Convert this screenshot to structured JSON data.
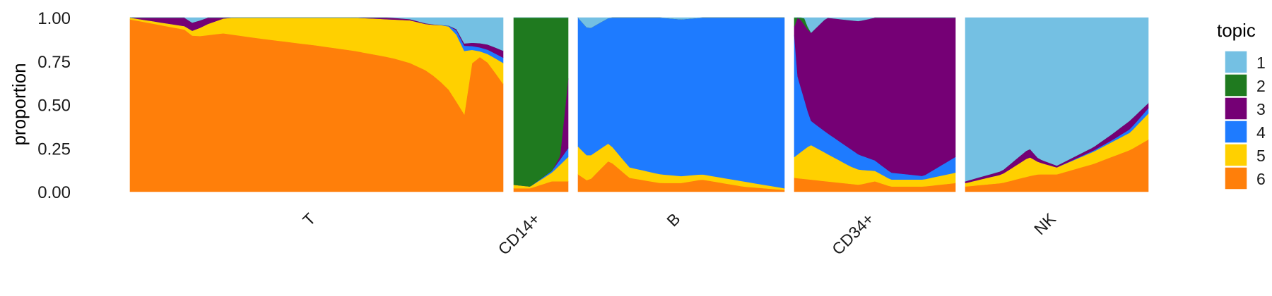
{
  "chart_data": {
    "type": "area",
    "subtype": "stacked-proportion (structure plot)",
    "title": "",
    "xlabel": "",
    "ylabel": "proportion",
    "ylim": [
      0,
      1
    ],
    "y_ticks": [
      "0.00",
      "0.25",
      "0.50",
      "0.75",
      "1.00"
    ],
    "grid": false,
    "legend": {
      "title": "topic",
      "placement": "right",
      "items": [
        "1",
        "2",
        "3",
        "4",
        "5",
        "6"
      ],
      "colors": [
        "#74c0e3",
        "#1f7a1f",
        "#750075",
        "#1e7bff",
        "#ffd000",
        "#ff7f0a"
      ]
    },
    "stack_order_bottom_to_top": [
      "6",
      "5",
      "4",
      "3",
      "2",
      "1"
    ],
    "facets": [
      {
        "label": "T",
        "topics": {
          "6": [
            [
              0,
              0.99
            ],
            [
              0.15,
              0.93
            ],
            [
              0.17,
              0.89
            ],
            [
              0.25,
              0.91
            ],
            [
              0.35,
              0.88
            ],
            [
              0.5,
              0.84
            ],
            [
              0.6,
              0.81
            ],
            [
              0.7,
              0.77
            ],
            [
              0.75,
              0.74
            ],
            [
              0.8,
              0.69
            ],
            [
              0.85,
              0.6
            ],
            [
              0.88,
              0.5
            ],
            [
              0.9,
              0.43
            ],
            [
              0.92,
              0.8
            ],
            [
              0.96,
              0.74
            ],
            [
              1.0,
              0.62
            ]
          ],
          "5": [
            [
              0,
              0.01
            ],
            [
              0.15,
              0.02
            ],
            [
              0.17,
              0.03
            ],
            [
              0.2,
              0.06
            ],
            [
              0.3,
              0.11
            ],
            [
              0.5,
              0.16
            ],
            [
              0.7,
              0.22
            ],
            [
              0.8,
              0.27
            ],
            [
              0.87,
              0.39
            ],
            [
              0.9,
              0.36
            ],
            [
              0.92,
              0.02
            ],
            [
              0.96,
              0.05
            ],
            [
              1.0,
              0.12
            ]
          ],
          "4": [
            [
              0,
              0.0
            ],
            [
              0.85,
              0.0
            ],
            [
              0.88,
              0.03
            ],
            [
              0.9,
              0.03
            ],
            [
              0.92,
              0.02
            ],
            [
              1.0,
              0.03
            ]
          ],
          "3": [
            [
              0,
              0.01
            ],
            [
              0.05,
              0.05
            ],
            [
              0.15,
              0.05
            ],
            [
              0.2,
              0.04
            ],
            [
              0.3,
              0.02
            ],
            [
              0.5,
              0.01
            ],
            [
              0.7,
              0.01
            ],
            [
              0.85,
              0.0
            ],
            [
              0.92,
              0.02
            ],
            [
              1.0,
              0.04
            ]
          ],
          "2": [
            [
              0,
              0.0
            ],
            [
              1.0,
              0.0
            ]
          ]
        }
      },
      {
        "label": "CD14+",
        "topics": {
          "6": [
            [
              0,
              0.02
            ],
            [
              0.3,
              0.02
            ],
            [
              0.7,
              0.06
            ],
            [
              1.0,
              0.06
            ]
          ],
          "5": [
            [
              0,
              0.02
            ],
            [
              0.3,
              0.01
            ],
            [
              0.7,
              0.05
            ],
            [
              1.0,
              0.14
            ]
          ],
          "4": [
            [
              0,
              0.0
            ],
            [
              0.3,
              0.0
            ],
            [
              0.7,
              0.01
            ],
            [
              1.0,
              0.05
            ]
          ],
          "3": [
            [
              0,
              0.0
            ],
            [
              0.7,
              0.0
            ],
            [
              0.85,
              0.02
            ],
            [
              1.0,
              0.4
            ]
          ],
          "2": [
            [
              0,
              0.96
            ],
            [
              0.3,
              0.97
            ],
            [
              0.7,
              0.88
            ],
            [
              0.9,
              0.8
            ],
            [
              1.0,
              0.35
            ]
          ]
        }
      },
      {
        "label": "B",
        "topics": {
          "6": [
            [
              0,
              0.1
            ],
            [
              0.05,
              0.06
            ],
            [
              0.15,
              0.18
            ],
            [
              0.25,
              0.08
            ],
            [
              0.4,
              0.05
            ],
            [
              0.5,
              0.05
            ],
            [
              0.6,
              0.07
            ],
            [
              0.8,
              0.03
            ],
            [
              1.0,
              0.01
            ]
          ],
          "5": [
            [
              0,
              0.16
            ],
            [
              0.15,
              0.1
            ],
            [
              0.25,
              0.06
            ],
            [
              0.4,
              0.05
            ],
            [
              0.5,
              0.04
            ],
            [
              0.6,
              0.03
            ],
            [
              0.8,
              0.03
            ],
            [
              1.0,
              0.01
            ]
          ],
          "4": [
            [
              0,
              0.74
            ],
            [
              0.15,
              0.72
            ],
            [
              0.25,
              0.86
            ],
            [
              0.4,
              0.9
            ],
            [
              0.6,
              0.9
            ],
            [
              0.8,
              0.94
            ],
            [
              1.0,
              0.98
            ]
          ],
          "3": [
            [
              0,
              0.0
            ],
            [
              1.0,
              0.0
            ]
          ],
          "2": [
            [
              0,
              0.0
            ],
            [
              1.0,
              0.0
            ]
          ]
        }
      },
      {
        "label": "CD34+",
        "topics": {
          "6": [
            [
              0,
              0.08
            ],
            [
              0.2,
              0.06
            ],
            [
              0.4,
              0.04
            ],
            [
              0.5,
              0.06
            ],
            [
              0.6,
              0.03
            ],
            [
              0.8,
              0.03
            ],
            [
              1.0,
              0.05
            ]
          ],
          "5": [
            [
              0,
              0.12
            ],
            [
              0.1,
              0.2
            ],
            [
              0.2,
              0.16
            ],
            [
              0.35,
              0.1
            ],
            [
              0.5,
              0.06
            ],
            [
              0.6,
              0.04
            ],
            [
              0.8,
              0.04
            ],
            [
              1.0,
              0.06
            ]
          ],
          "4": [
            [
              0,
              0.7
            ],
            [
              0.02,
              0.45
            ],
            [
              0.1,
              0.14
            ],
            [
              0.2,
              0.12
            ],
            [
              0.35,
              0.1
            ],
            [
              0.5,
              0.06
            ],
            [
              0.6,
              0.04
            ],
            [
              0.8,
              0.02
            ],
            [
              1.0,
              0.09
            ]
          ],
          "3": [
            [
              0,
              0.05
            ],
            [
              0.02,
              0.35
            ],
            [
              0.1,
              0.5
            ],
            [
              0.2,
              0.66
            ],
            [
              0.35,
              0.74
            ],
            [
              0.5,
              0.82
            ],
            [
              0.6,
              0.89
            ],
            [
              0.8,
              0.91
            ],
            [
              1.0,
              0.8
            ]
          ],
          "2": [
            [
              0,
              0.05
            ],
            [
              0.05,
              0.05
            ],
            [
              0.1,
              0.0
            ],
            [
              1.0,
              0.0
            ]
          ]
        }
      },
      {
        "label": "NK",
        "topics": {
          "6": [
            [
              0,
              0.03
            ],
            [
              0.2,
              0.05
            ],
            [
              0.35,
              0.09
            ],
            [
              0.4,
              0.1
            ],
            [
              0.5,
              0.1
            ],
            [
              0.7,
              0.16
            ],
            [
              0.9,
              0.24
            ],
            [
              1.0,
              0.3
            ]
          ],
          "5": [
            [
              0,
              0.02
            ],
            [
              0.2,
              0.05
            ],
            [
              0.35,
              0.11
            ],
            [
              0.4,
              0.07
            ],
            [
              0.5,
              0.04
            ],
            [
              0.7,
              0.07
            ],
            [
              0.9,
              0.1
            ],
            [
              1.0,
              0.15
            ]
          ],
          "4": [
            [
              0,
              0.0
            ],
            [
              0.5,
              0.0
            ],
            [
              0.8,
              0.01
            ],
            [
              1.0,
              0.03
            ]
          ],
          "3": [
            [
              0,
              0.01
            ],
            [
              0.2,
              0.02
            ],
            [
              0.35,
              0.05
            ],
            [
              0.4,
              0.02
            ],
            [
              0.5,
              0.01
            ],
            [
              0.7,
              0.02
            ],
            [
              0.9,
              0.05
            ],
            [
              1.0,
              0.03
            ]
          ],
          "2": [
            [
              0,
              0.0
            ],
            [
              1.0,
              0.0
            ]
          ]
        }
      }
    ]
  }
}
